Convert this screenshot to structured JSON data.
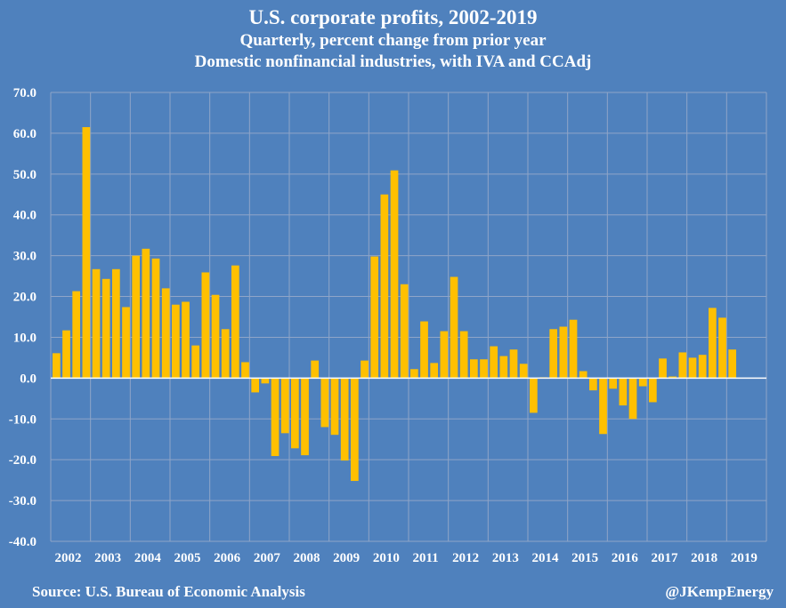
{
  "chart_data": {
    "type": "bar",
    "title": "U.S. corporate profits, 2002-2019",
    "subtitle_1": "Quarterly, percent change from prior year",
    "subtitle_2": "Domestic nonfinancial industries, with IVA and CCAdj",
    "xlabel": "",
    "ylabel": "",
    "ylim": [
      -40,
      70
    ],
    "ytick_step": 10,
    "yticks": [
      "70.0",
      "60.0",
      "50.0",
      "40.0",
      "30.0",
      "20.0",
      "10.0",
      "0.0",
      "-10.0",
      "-20.0",
      "-30.0",
      "-40.0"
    ],
    "grid": true,
    "legend": "none",
    "x_start": "2002Q1",
    "x_years": [
      "2002",
      "2003",
      "2004",
      "2005",
      "2006",
      "2007",
      "2008",
      "2009",
      "2010",
      "2011",
      "2012",
      "2013",
      "2014",
      "2015",
      "2016",
      "2017",
      "2018",
      "2019"
    ],
    "periods_per_year": 4,
    "series": [
      {
        "name": "Corporate profits, % change y/y",
        "color": "#FFC000",
        "values": [
          6.1,
          11.7,
          21.3,
          61.5,
          26.7,
          24.3,
          26.7,
          17.4,
          30.0,
          31.7,
          29.3,
          22.0,
          18.0,
          18.7,
          8.0,
          25.9,
          20.4,
          12.0,
          27.6,
          3.9,
          -3.5,
          -1.3,
          -19.1,
          -13.5,
          -17.2,
          -18.9,
          4.3,
          -12.0,
          -13.9,
          -20.2,
          -25.2,
          4.3,
          29.8,
          45.0,
          50.9,
          23.0,
          2.2,
          13.9,
          3.7,
          11.5,
          24.8,
          11.5,
          4.6,
          4.6,
          7.8,
          5.4,
          7.0,
          3.5,
          -8.5,
          0.2,
          12.0,
          12.6,
          14.3,
          1.7,
          -3.0,
          -13.7,
          -2.6,
          -6.7,
          -10.0,
          -2.0,
          -5.9,
          4.8,
          0.4,
          6.3,
          5.0,
          5.7,
          17.2,
          14.8,
          7.0
        ]
      }
    ]
  },
  "colors": {
    "background": "#4F81BD",
    "bar": "#FFC000",
    "gridline": "#8FA5C8",
    "zero_line": "#FFFFFF",
    "text": "#FFFFFF"
  },
  "footer": {
    "source": "Source: U.S. Bureau of Economic Analysis",
    "credit": "@JKempEnergy"
  }
}
